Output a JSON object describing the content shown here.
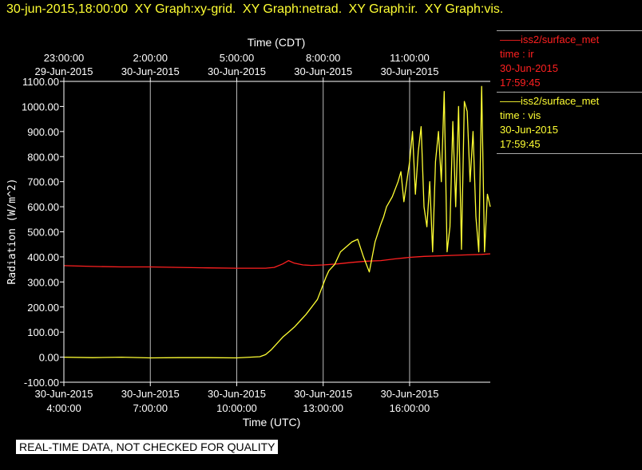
{
  "header": {
    "timestamp": "30-jun-2015,18:00:00",
    "graphs": [
      "XY Graph:xy-grid.",
      "XY Graph:netrad.",
      "XY Graph:ir.",
      "XY Graph:vis."
    ]
  },
  "disclaimer": "REAL-TIME DATA, NOT CHECKED FOR QUALITY",
  "legend": [
    {
      "source": "——iss2/surface_met",
      "var": "time : ir",
      "date": "30-Jun-2015",
      "time": "17:59:45",
      "color": "#ff2020"
    },
    {
      "source": "——iss2/surface_met",
      "var": "time : vis",
      "date": "30-Jun-2015",
      "time": "17:59:45",
      "color": "#ffff33"
    }
  ],
  "chart_data": {
    "type": "line",
    "ylabel": "Radiation (W/m^2)",
    "xlabel_bottom": "Time (UTC)",
    "xlabel_top": "Time (CDT)",
    "ylim": [
      -100,
      1100
    ],
    "xlim_hours_utc": [
      4,
      18.8
    ],
    "y_ticks": [
      "-100.00",
      "0.00",
      "100.00",
      "200.00",
      "300.00",
      "400.00",
      "500.00",
      "600.00",
      "700.00",
      "800.00",
      "900.00",
      "1000.00",
      "1100.00"
    ],
    "bottom_ticks": [
      {
        "hour": 4,
        "date": "30-Jun-2015",
        "time": "4:00:00"
      },
      {
        "hour": 7,
        "date": "30-Jun-2015",
        "time": "7:00:00"
      },
      {
        "hour": 10,
        "date": "30-Jun-2015",
        "time": "10:00:00"
      },
      {
        "hour": 13,
        "date": "30-Jun-2015",
        "time": "13:00:00"
      },
      {
        "hour": 16,
        "date": "30-Jun-2015",
        "time": "16:00:00"
      }
    ],
    "top_ticks": [
      {
        "hour": 4,
        "time": "23:00:00",
        "date": "29-Jun-2015"
      },
      {
        "hour": 7,
        "time": "2:00:00",
        "date": "30-Jun-2015"
      },
      {
        "hour": 10,
        "time": "5:00:00",
        "date": "30-Jun-2015"
      },
      {
        "hour": 13,
        "time": "8:00:00",
        "date": "30-Jun-2015"
      },
      {
        "hour": 16,
        "time": "11:00:00",
        "date": "30-Jun-2015"
      }
    ],
    "grid": true,
    "series": [
      {
        "name": "time : ir",
        "color": "#ff2020",
        "x": [
          4.0,
          5.0,
          6.0,
          7.0,
          8.0,
          9.0,
          10.0,
          11.0,
          11.3,
          11.6,
          11.8,
          12.0,
          12.3,
          12.6,
          13.0,
          13.5,
          14.0,
          14.5,
          15.0,
          15.5,
          16.0,
          16.5,
          17.0,
          17.5,
          18.0,
          18.5,
          18.8
        ],
        "y": [
          365,
          362,
          360,
          360,
          358,
          356,
          355,
          355,
          358,
          372,
          385,
          375,
          368,
          366,
          368,
          372,
          378,
          383,
          385,
          392,
          398,
          402,
          404,
          406,
          408,
          410,
          412
        ]
      },
      {
        "name": "time : vis",
        "color": "#ffff33",
        "x": [
          4.0,
          5.0,
          6.0,
          7.0,
          8.0,
          9.0,
          10.0,
          10.8,
          11.0,
          11.2,
          11.4,
          11.6,
          11.8,
          12.0,
          12.2,
          12.4,
          12.6,
          12.8,
          13.0,
          13.1,
          13.2,
          13.4,
          13.6,
          13.8,
          14.0,
          14.2,
          14.4,
          14.6,
          14.8,
          15.0,
          15.1,
          15.2,
          15.4,
          15.6,
          15.7,
          15.8,
          16.0,
          16.1,
          16.2,
          16.3,
          16.4,
          16.5,
          16.6,
          16.7,
          16.8,
          16.9,
          17.0,
          17.1,
          17.2,
          17.3,
          17.4,
          17.5,
          17.6,
          17.7,
          17.8,
          17.9,
          18.0,
          18.1,
          18.2,
          18.3,
          18.4,
          18.5,
          18.6,
          18.7,
          18.8
        ],
        "y": [
          0,
          -2,
          0,
          -3,
          -2,
          -2,
          -3,
          2,
          10,
          30,
          55,
          80,
          100,
          120,
          145,
          170,
          200,
          230,
          290,
          320,
          345,
          370,
          420,
          440,
          460,
          470,
          400,
          340,
          460,
          530,
          560,
          600,
          640,
          700,
          740,
          620,
          780,
          900,
          650,
          820,
          920,
          600,
          520,
          700,
          420,
          780,
          900,
          700,
          1060,
          420,
          520,
          940,
          600,
          1000,
          430,
          1020,
          980,
          700,
          900,
          560,
          420,
          1080,
          420,
          650,
          600
        ]
      }
    ]
  }
}
